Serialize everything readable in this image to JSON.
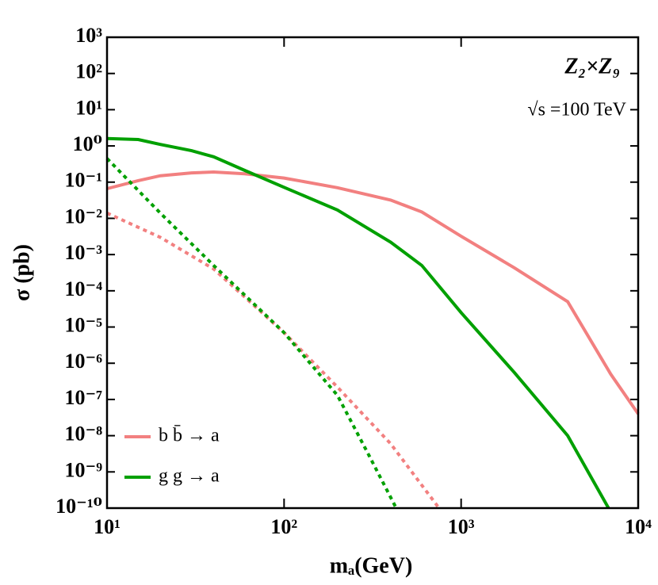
{
  "chart_data": {
    "type": "line",
    "xlabel": "mₐ(GeV)",
    "ylabel": "σ (pb)",
    "annotations": [
      "Z₂×Z₉",
      "√s =100 TeV"
    ],
    "xscale": "log",
    "yscale": "log",
    "xlim": [
      10,
      10000
    ],
    "ylim": [
      1e-10,
      1000
    ],
    "xticks": [
      {
        "value": 10,
        "label": "10¹"
      },
      {
        "value": 100,
        "label": "10²"
      },
      {
        "value": 1000,
        "label": "10³"
      },
      {
        "value": 10000,
        "label": "10⁴"
      }
    ],
    "yticks": [
      {
        "value": 1e-10,
        "label": "10⁻¹⁰"
      },
      {
        "value": 1e-09,
        "label": "10⁻⁹"
      },
      {
        "value": 1e-08,
        "label": "10⁻⁸"
      },
      {
        "value": 1e-07,
        "label": "10⁻⁷"
      },
      {
        "value": 1e-06,
        "label": "10⁻⁶"
      },
      {
        "value": 1e-05,
        "label": "10⁻⁵"
      },
      {
        "value": 0.0001,
        "label": "10⁻⁴"
      },
      {
        "value": 0.001,
        "label": "10⁻³"
      },
      {
        "value": 0.01,
        "label": "10⁻²"
      },
      {
        "value": 0.1,
        "label": "10⁻¹"
      },
      {
        "value": 1,
        "label": "10⁰"
      },
      {
        "value": 10,
        "label": "10¹"
      },
      {
        "value": 100,
        "label": "10²"
      },
      {
        "value": 1000,
        "label": "10³"
      }
    ],
    "legend": "lower left",
    "series": [
      {
        "name": "b b̄ → a",
        "color": "#f28080",
        "dash": false,
        "x": [
          10,
          15,
          20,
          30,
          40,
          60,
          100,
          200,
          400,
          600,
          1000,
          2000,
          4000,
          7000,
          10000
        ],
        "values": [
          0.066,
          0.11,
          0.15,
          0.18,
          0.19,
          0.17,
          0.13,
          0.07,
          0.032,
          0.015,
          0.0032,
          0.00043,
          5e-05,
          5e-07,
          4e-08
        ]
      },
      {
        "name": "g g → a",
        "color": "#00a000",
        "dash": false,
        "x": [
          10,
          15,
          20,
          30,
          40,
          60,
          100,
          200,
          400,
          600,
          1000,
          2000,
          4000,
          6800
        ],
        "values": [
          1.6,
          1.5,
          1.1,
          0.74,
          0.5,
          0.21,
          0.072,
          0.017,
          0.0022,
          0.0005,
          2.5e-05,
          5.5e-07,
          1e-08,
          1e-10
        ]
      },
      {
        "color": "#f28080",
        "dash": true,
        "x": [
          10,
          20,
          40,
          100,
          200,
          400,
          750
        ],
        "values": [
          0.014,
          0.003,
          0.0004,
          7e-06,
          2.2e-07,
          6e-09,
          1e-10
        ]
      },
      {
        "color": "#00a000",
        "dash": true,
        "x": [
          10,
          20,
          40,
          100,
          200,
          300,
          430
        ],
        "values": [
          0.45,
          0.014,
          0.0005,
          7e-06,
          1.3e-07,
          3e-09,
          1e-10
        ]
      }
    ]
  }
}
